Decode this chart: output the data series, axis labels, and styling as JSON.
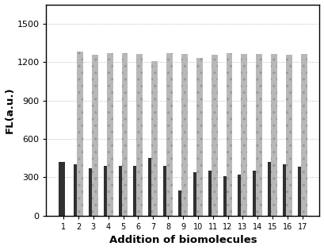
{
  "categories": [
    "1",
    "2",
    "3",
    "4",
    "5",
    "6",
    "7",
    "8",
    "9",
    "10",
    "11",
    "12",
    "13",
    "14",
    "15",
    "16",
    "17"
  ],
  "dark_bars": [
    420,
    400,
    370,
    390,
    390,
    390,
    450,
    390,
    200,
    340,
    350,
    310,
    320,
    350,
    420,
    400,
    385
  ],
  "light_bars": [
    0,
    1280,
    1260,
    1270,
    1270,
    1265,
    1210,
    1270,
    1265,
    1230,
    1255,
    1270,
    1265,
    1265,
    1265,
    1260,
    1265
  ],
  "dark_color": "#303030",
  "light_color": "#b8b8b8",
  "light_dot_color": "#888888",
  "ylabel": "FL(a.u.)",
  "xlabel": "Addition of biomolecules",
  "ylim": [
    0,
    1650
  ],
  "yticks": [
    0,
    300,
    600,
    900,
    1200,
    1500
  ],
  "background_color": "#ffffff",
  "bar_width": 0.42,
  "figsize": [
    4.09,
    3.15
  ],
  "dpi": 100
}
